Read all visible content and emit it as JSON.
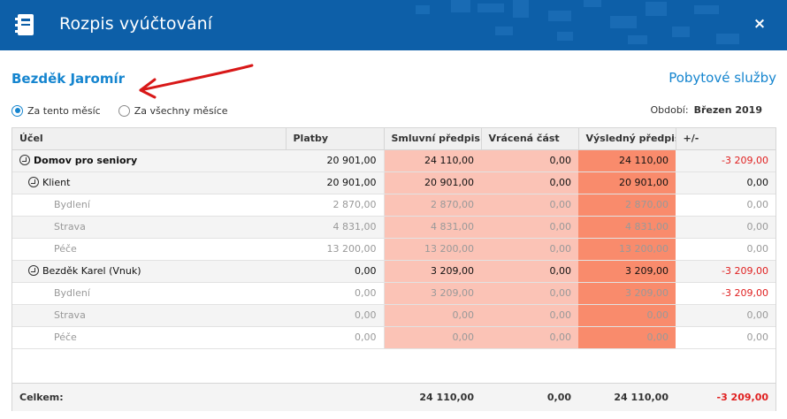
{
  "window": {
    "title": "Rozpis vyúčtování",
    "close": "×"
  },
  "header": {
    "name": "Bezděk Jaromír",
    "service": "Pobytové služby"
  },
  "filter": {
    "options": [
      "Za tento měsíc",
      "Za všechny měsíce"
    ],
    "selected": "Za tento měsíc",
    "period_label": "Období:",
    "period_value": "Březen 2019"
  },
  "table": {
    "columns": [
      "Účel",
      "Platby",
      "Smluvní předpis",
      "Vrácená část",
      "Výsledný předpis",
      "+/-"
    ],
    "rows": [
      {
        "name": "Domov pro seniory",
        "platby": "20 901,00",
        "smluvni": "24 110,00",
        "vracena": "0,00",
        "vysledny": "24 110,00",
        "diff": "-3 209,00"
      },
      {
        "name": "Klient",
        "platby": "20 901,00",
        "smluvni": "20 901,00",
        "vracena": "0,00",
        "vysledny": "20 901,00",
        "diff": "0,00"
      },
      {
        "name": "Bydlení",
        "platby": "2 870,00",
        "smluvni": "2 870,00",
        "vracena": "0,00",
        "vysledny": "2 870,00",
        "diff": "0,00"
      },
      {
        "name": "Strava",
        "platby": "4 831,00",
        "smluvni": "4 831,00",
        "vracena": "0,00",
        "vysledny": "4 831,00",
        "diff": "0,00"
      },
      {
        "name": "Péče",
        "platby": "13 200,00",
        "smluvni": "13 200,00",
        "vracena": "0,00",
        "vysledny": "13 200,00",
        "diff": "0,00"
      },
      {
        "name": "Bezděk Karel (Vnuk)",
        "platby": "0,00",
        "smluvni": "3 209,00",
        "vracena": "0,00",
        "vysledny": "3 209,00",
        "diff": "-3 209,00"
      },
      {
        "name": "Bydlení",
        "platby": "0,00",
        "smluvni": "3 209,00",
        "vracena": "0,00",
        "vysledny": "3 209,00",
        "diff": "-3 209,00"
      },
      {
        "name": "Strava",
        "platby": "0,00",
        "smluvni": "0,00",
        "vracena": "0,00",
        "vysledny": "0,00",
        "diff": "0,00"
      },
      {
        "name": "Péče",
        "platby": "0,00",
        "smluvni": "0,00",
        "vracena": "0,00",
        "vysledny": "0,00",
        "diff": "0,00"
      }
    ],
    "total": {
      "label": "Celkem:",
      "smluvni": "24 110,00",
      "vracena": "0,00",
      "vysledny": "24 110,00",
      "diff": "-3 209,00"
    }
  },
  "colors": {
    "header": "#0d5fa8",
    "accent": "#1585cf",
    "pink": "#fbc3b6",
    "salmon": "#f98b6c",
    "negative": "#e02020"
  },
  "icons": [
    "document-icon",
    "close-icon",
    "expand-icon",
    "arrow-annotation"
  ]
}
